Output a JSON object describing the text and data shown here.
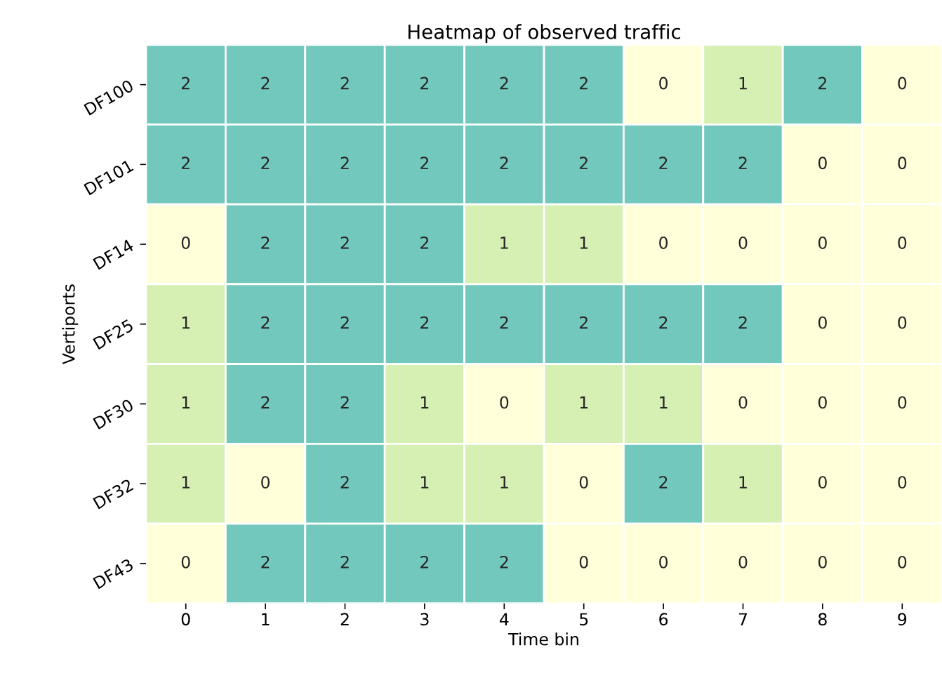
{
  "chart_data": {
    "type": "heatmap",
    "title": "Heatmap of observed traffic",
    "xlabel": "Time bin",
    "ylabel": "Vertiports",
    "categories": [
      "0",
      "1",
      "2",
      "3",
      "4",
      "5",
      "6",
      "7",
      "8",
      "9"
    ],
    "y_categories": [
      "DF100",
      "DF101",
      "DF14",
      "DF25",
      "DF30",
      "DF32",
      "DF43"
    ],
    "cells": [
      [
        2,
        2,
        2,
        2,
        2,
        2,
        0,
        1,
        2,
        0
      ],
      [
        2,
        2,
        2,
        2,
        2,
        2,
        2,
        2,
        0,
        0
      ],
      [
        0,
        2,
        2,
        2,
        1,
        1,
        0,
        0,
        0,
        0
      ],
      [
        1,
        2,
        2,
        2,
        2,
        2,
        2,
        2,
        0,
        0
      ],
      [
        1,
        2,
        2,
        1,
        0,
        1,
        1,
        0,
        0,
        0
      ],
      [
        1,
        0,
        2,
        1,
        1,
        0,
        2,
        1,
        0,
        0
      ],
      [
        0,
        2,
        2,
        2,
        2,
        0,
        0,
        0,
        0,
        0
      ]
    ],
    "colors": [
      "#ffffd9",
      "#d6efb3",
      "#73c8bd"
    ],
    "data_labels": true,
    "grid": false,
    "legend": false
  }
}
